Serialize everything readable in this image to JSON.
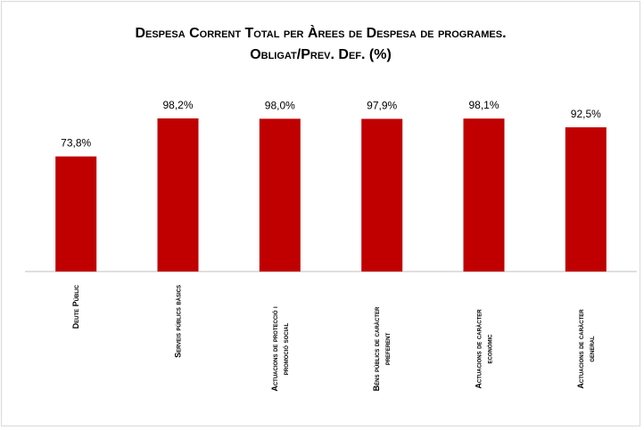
{
  "chart_data": {
    "type": "bar",
    "title": "Despesa Corrent Total per Àrees de Despesa de programes.",
    "subtitle": "Obligat/Prev. Def. (%)",
    "categories": [
      [
        "Deute Públic"
      ],
      [
        "Serveis públics bàsics"
      ],
      [
        "Actuacions de protecció i",
        "promoció social"
      ],
      [
        "Béns públics de caràcter",
        "preferent"
      ],
      [
        "Actuacions de caràcter",
        "econòmic"
      ],
      [
        "Actuacions de caràcter",
        "general"
      ]
    ],
    "values": [
      73.8,
      98.2,
      98.0,
      97.9,
      98.1,
      92.5
    ],
    "value_labels": [
      "73,8%",
      "98,2%",
      "98,0%",
      "97,9%",
      "98,1%",
      "92,5%"
    ],
    "colors": {
      "bar": "#c00000"
    },
    "xlabel": "",
    "ylabel": "",
    "grid": false,
    "legend": false
  }
}
